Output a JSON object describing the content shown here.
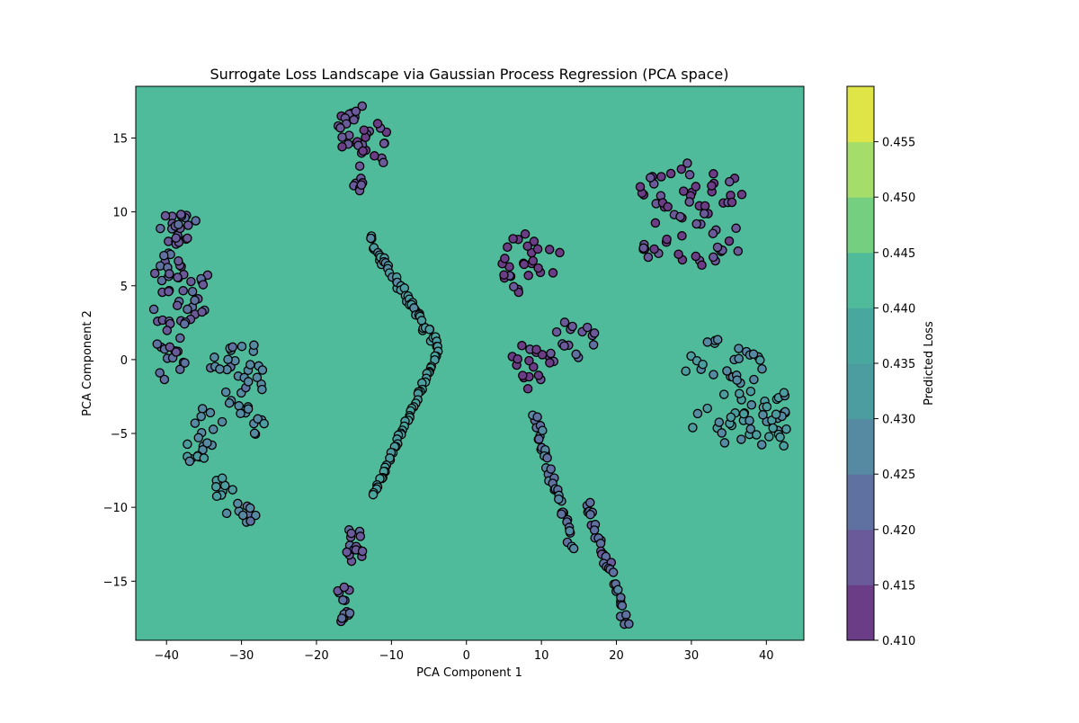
{
  "chart_data": {
    "type": "scatter",
    "title": "Surrogate Loss Landscape via Gaussian Process Regression (PCA space)",
    "xlabel": "PCA Component 1",
    "ylabel": "PCA Component 2",
    "xlim": [
      -44.1,
      45.0
    ],
    "ylim": [
      -19.0,
      18.5
    ],
    "x_ticks": [
      -40,
      -30,
      -20,
      -10,
      0,
      10,
      20,
      30,
      40
    ],
    "y_ticks": [
      -15,
      -10,
      -5,
      0,
      5,
      10,
      15
    ],
    "x_tick_labels": [
      "−40",
      "−30",
      "−20",
      "−10",
      "0",
      "10",
      "20",
      "30",
      "40"
    ],
    "y_tick_labels": [
      "−15",
      "−10",
      "−5",
      "0",
      "5",
      "10",
      "15"
    ],
    "background_level": 0.4375,
    "background_color": "#4fbb9a",
    "colorbar": {
      "label": "Predicted Loss",
      "levels": [
        0.41,
        0.415,
        0.42,
        0.425,
        0.43,
        0.435,
        0.44,
        0.445,
        0.45,
        0.455
      ],
      "tick_labels": [
        "0.410",
        "0.415",
        "0.420",
        "0.425",
        "0.430",
        "0.435",
        "0.440",
        "0.445",
        "0.450",
        "0.455"
      ],
      "band_colors": [
        "#6b3d87",
        "#6a5a9a",
        "#5f71a0",
        "#568aa2",
        "#4c9da0",
        "#48a79e",
        "#4fbb9a",
        "#74cf80",
        "#a5dd6b",
        "#dfe546"
      ]
    },
    "marker_edge_color": "#000000",
    "clusters": [
      {
        "cx": -15.0,
        "cy": 15.5,
        "rx": 2.5,
        "ry": 2.0,
        "n": 26,
        "loss": 0.416
      },
      {
        "cx": -14.5,
        "cy": 12.4,
        "rx": 1.0,
        "ry": 1.0,
        "n": 8,
        "loss": 0.416
      },
      {
        "cx": -11.5,
        "cy": 14.6,
        "rx": 1.0,
        "ry": 1.6,
        "n": 8,
        "loss": 0.416
      },
      {
        "cx": -38.0,
        "cy": 8.8,
        "rx": 3.5,
        "ry": 1.2,
        "n": 22,
        "loss": 0.418
      },
      {
        "cx": -38.5,
        "cy": 5.8,
        "rx": 4.5,
        "ry": 1.5,
        "n": 26,
        "loss": 0.419
      },
      {
        "cx": -38.5,
        "cy": 3.4,
        "rx": 4.0,
        "ry": 1.2,
        "n": 18,
        "loss": 0.42
      },
      {
        "cx": -39.5,
        "cy": 0.0,
        "rx": 2.2,
        "ry": 2.2,
        "n": 16,
        "loss": 0.421
      },
      {
        "cx": -30.5,
        "cy": -0.8,
        "rx": 3.8,
        "ry": 2.5,
        "n": 30,
        "loss": 0.427
      },
      {
        "cx": -34.5,
        "cy": -4.5,
        "rx": 2.0,
        "ry": 1.5,
        "n": 10,
        "loss": 0.428
      },
      {
        "cx": -28.5,
        "cy": -4.2,
        "rx": 2.0,
        "ry": 1.2,
        "n": 10,
        "loss": 0.429
      },
      {
        "cx": -36.0,
        "cy": -6.2,
        "rx": 1.5,
        "ry": 1.0,
        "n": 10,
        "loss": 0.43
      },
      {
        "cx": -32.5,
        "cy": -8.8,
        "rx": 1.5,
        "ry": 0.8,
        "n": 8,
        "loss": 0.432
      },
      {
        "cx": -30.0,
        "cy": -10.5,
        "rx": 2.0,
        "ry": 0.8,
        "n": 10,
        "loss": 0.425
      },
      {
        "cx": -15.0,
        "cy": -12.5,
        "rx": 1.4,
        "ry": 1.4,
        "n": 16,
        "loss": 0.418
      },
      {
        "cx": -16.5,
        "cy": -16.5,
        "rx": 1.2,
        "ry": 1.4,
        "n": 14,
        "loss": 0.42
      },
      {
        "cx": 8.5,
        "cy": 6.5,
        "rx": 4.5,
        "ry": 2.2,
        "n": 28,
        "loss": 0.413
      },
      {
        "cx": 8.5,
        "cy": -0.5,
        "rx": 4.0,
        "ry": 1.6,
        "n": 20,
        "loss": 0.413
      },
      {
        "cx": 14.5,
        "cy": 1.5,
        "rx": 3.0,
        "ry": 1.4,
        "n": 14,
        "loss": 0.418
      },
      {
        "cx": 29.5,
        "cy": 11.5,
        "rx": 7.5,
        "ry": 1.8,
        "n": 36,
        "loss": 0.414
      },
      {
        "cx": 30.0,
        "cy": 8.0,
        "rx": 7.0,
        "ry": 2.0,
        "n": 32,
        "loss": 0.416
      },
      {
        "cx": 34.5,
        "cy": -0.2,
        "rx": 6.0,
        "ry": 1.6,
        "n": 26,
        "loss": 0.428
      },
      {
        "cx": 36.5,
        "cy": -4.0,
        "rx": 7.0,
        "ry": 2.0,
        "n": 34,
        "loss": 0.43
      },
      {
        "cx": 41.0,
        "cy": -4.0,
        "rx": 2.5,
        "ry": 2.2,
        "n": 14,
        "loss": 0.432
      }
    ],
    "strands": [
      {
        "x0": -13.0,
        "y0": 8.2,
        "x1": -3.8,
        "y1": 0.8,
        "n": 50,
        "jitter": 0.7,
        "loss": 0.432
      },
      {
        "x0": -3.8,
        "y0": 0.5,
        "x1": -12.5,
        "y1": -9.2,
        "n": 50,
        "jitter": 0.35,
        "loss": 0.434
      },
      {
        "x0": 9.0,
        "y0": -3.8,
        "x1": 14.0,
        "y1": -12.5,
        "n": 40,
        "jitter": 0.8,
        "loss": 0.426
      },
      {
        "x0": 16.0,
        "y0": -9.5,
        "x1": 21.5,
        "y1": -18.0,
        "n": 38,
        "jitter": 0.8,
        "loss": 0.422
      }
    ]
  }
}
